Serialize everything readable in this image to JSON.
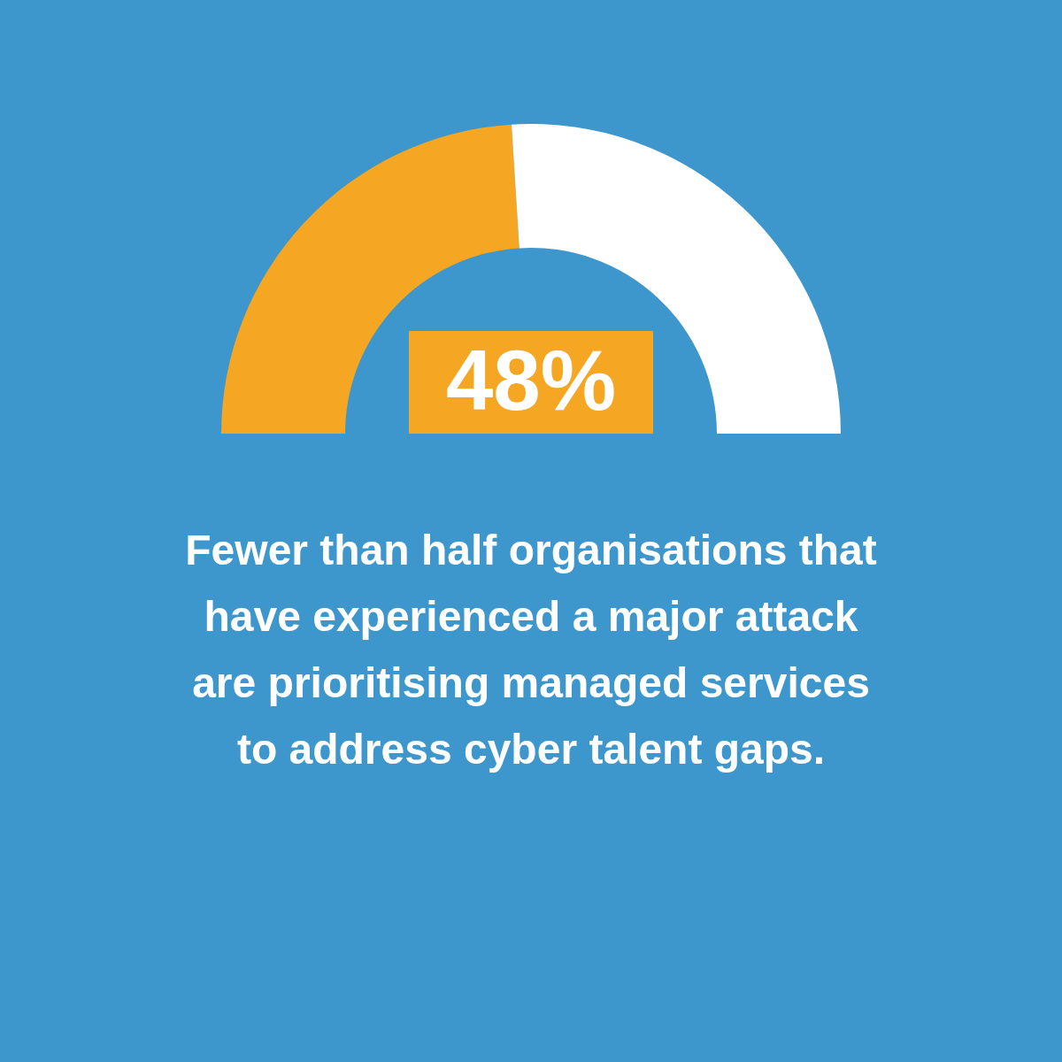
{
  "chart_data": {
    "type": "donut",
    "title": "Fewer than half organisations that have experienced a major attack are prioritising managed services to address cyber talent gaps.",
    "categories": [
      null,
      null
    ],
    "values": [
      48,
      52
    ],
    "colors": [
      "#f5a623",
      "#ffffff"
    ],
    "value_labels": [
      "48%",
      null
    ]
  }
}
